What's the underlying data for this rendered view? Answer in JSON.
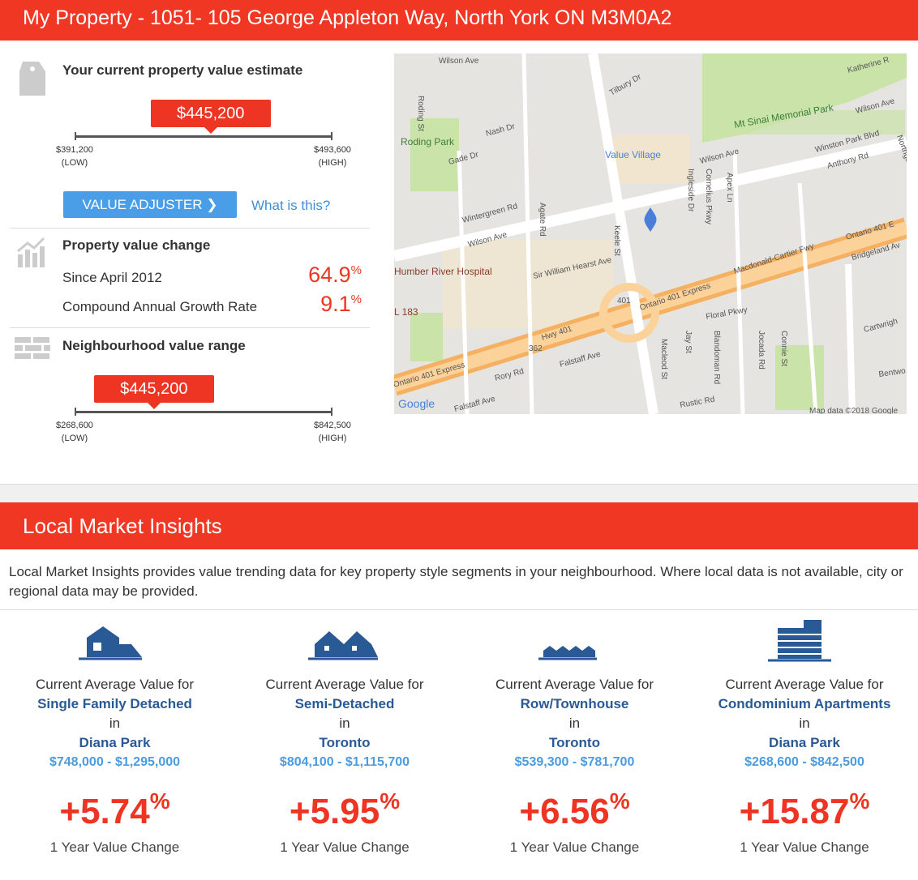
{
  "header": {
    "title": "My Property - 1051- 105 George Appleton Way, North York ON M3M0A2"
  },
  "estimate": {
    "heading": "Your current property value estimate",
    "estimate": {
      "value": 445200,
      "label": "$445,200"
    },
    "low": {
      "value": 391200,
      "label": "$391,200",
      "note": "(LOW)"
    },
    "high": {
      "value": 493600,
      "label": "$493,600",
      "note": "(HIGH)"
    },
    "button": "VALUE ADJUSTER",
    "link": "What is this?"
  },
  "change": {
    "heading": "Property value change",
    "rows": [
      {
        "label": "Since April 2012",
        "value": "64.9",
        "unit": "%"
      },
      {
        "label": "Compound Annual Growth Rate",
        "value": "9.1",
        "unit": "%"
      }
    ]
  },
  "range": {
    "heading": "Neighbourhood value range",
    "estimate": {
      "value": 445200,
      "label": "$445,200"
    },
    "low": {
      "value": 268600,
      "label": "$268,600",
      "note": "(LOW)"
    },
    "high": {
      "value": 842500,
      "label": "$842,500",
      "note": "(HIGH)"
    }
  },
  "map": {
    "labels": [
      "Roding St",
      "Tilbury Dr",
      "Katherine R",
      "Mt Sinai Memorial Park",
      "Wilson Ave",
      "Roding Park",
      "Nash Dr",
      "Gade Dr",
      "Value Village",
      "Wilson Ave",
      "Winston Park Blvd",
      "Anthony Rd",
      "Northgate",
      "Wintergreen Rd",
      "Agate Rd",
      "Wilson Ave",
      "Keele St",
      "Ingleside Dr",
      "Cornelius Pkwy",
      "Apex Ln",
      "Humber River Hospital",
      "Sir William Hearst Ave",
      "Ontario 401 Express",
      "Macdonald-Cartier Fwy",
      "Ontario 401 E",
      "Bridgeland Av",
      "L 183",
      "Hwy 401",
      "Floral Pkwy",
      "Jay St",
      "Blandoman Rd",
      "Jocada Rd",
      "Connie St",
      "Cartwrigh",
      "Macleod St",
      "Rory Rd",
      "Falstaff Ave",
      "Ontario 401 Express",
      "Bentwo",
      "Falstaff Ave",
      "Rustic Rd",
      "Wilson Ave",
      "401",
      "362",
      "Google",
      "Map data ©2018 Google"
    ]
  },
  "insights": {
    "title": "Local Market Insights",
    "description": "Local Market Insights provides value trending data for key property style segments in your neighbourhood. Where local data is not available, city or regional data may be provided.",
    "items": [
      {
        "intro": "Current Average Value for",
        "type": "Single Family Detached",
        "in": "in",
        "location": "Diana Park",
        "range": "$748,000 - $1,295,000",
        "change": "+5.74",
        "unit": "%",
        "caption": "1 Year Value Change"
      },
      {
        "intro": "Current Average Value for",
        "type": "Semi-Detached",
        "in": "in",
        "location": "Toronto",
        "range": "$804,100 - $1,115,700",
        "change": "+5.95",
        "unit": "%",
        "caption": "1 Year Value Change"
      },
      {
        "intro": "Current Average Value for",
        "type": "Row/Townhouse",
        "in": "in",
        "location": "Toronto",
        "range": "$539,300 - $781,700",
        "change": "+6.56",
        "unit": "%",
        "caption": "1 Year Value Change"
      },
      {
        "intro": "Current Average Value for",
        "type": "Condominium Apartments",
        "in": "in",
        "location": "Diana Park",
        "range": "$268,600 - $842,500",
        "change": "+15.87",
        "unit": "%",
        "caption": "1 Year Value Change"
      }
    ]
  }
}
